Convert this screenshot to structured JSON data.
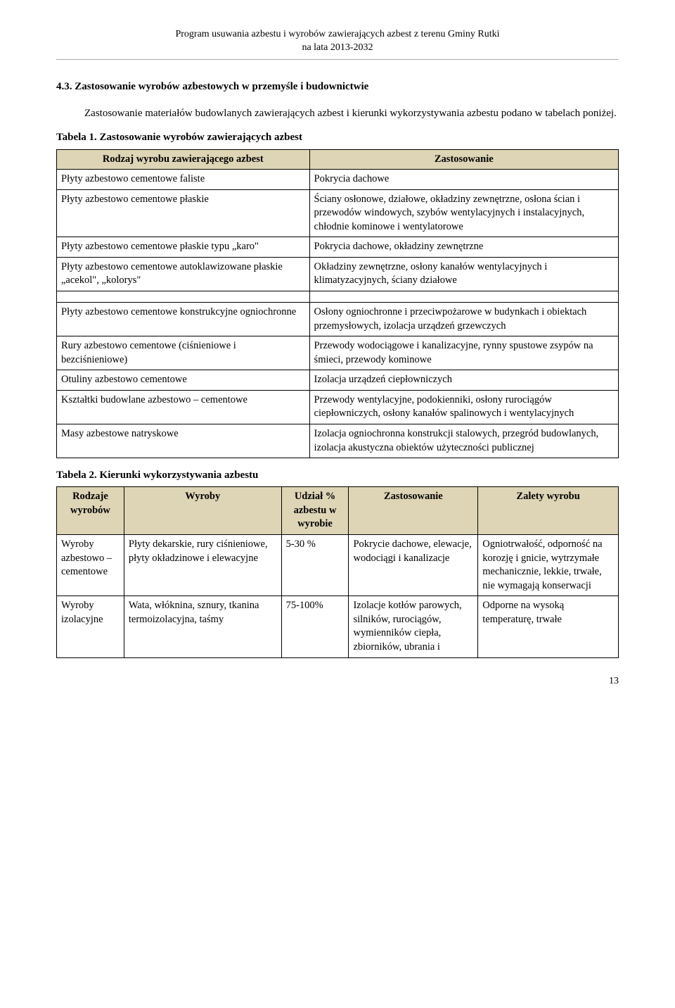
{
  "header": {
    "line1": "Program usuwania azbestu i wyrobów zawierających azbest z terenu Gminy Rutki",
    "line2": "na lata 2013-2032"
  },
  "section": {
    "heading": "4.3. Zastosowanie wyrobów azbestowych w przemyśle i budownictwie",
    "intro": "Zastosowanie materiałów budowlanych zawierających azbest i kierunki wykorzystywania azbestu podano w tabelach poniżej."
  },
  "table1": {
    "caption": "Tabela 1. Zastosowanie wyrobów zawierających azbest",
    "head": {
      "c1": "Rodzaj wyrobu zawierającego azbest",
      "c2": "Zastosowanie"
    },
    "rows_top": [
      {
        "c1": "Płyty azbestowo cementowe faliste",
        "c2": "Pokrycia dachowe"
      },
      {
        "c1": "Płyty azbestowo cementowe płaskie",
        "c2": "Ściany osłonowe, działowe, okładziny zewnętrzne, osłona ścian i przewodów windowych, szybów wentylacyjnych i instalacyjnych, chłodnie kominowe i wentylatorowe"
      },
      {
        "c1": "Płyty azbestowo cementowe płaskie typu „karo\"",
        "c2": "Pokrycia dachowe, okładziny zewnętrzne"
      },
      {
        "c1": "Płyty azbestowo cementowe autoklawizowane płaskie „acekol\", „kolorys\"",
        "c2": "Okładziny zewnętrzne, osłony kanałów wentylacyjnych i klimatyzacyjnych, ściany działowe"
      }
    ],
    "rows_bottom": [
      {
        "c1": "Płyty azbestowo cementowe konstrukcyjne ogniochronne",
        "c2": "Osłony ogniochronne i przeciwpożarowe w budynkach i obiektach przemysłowych, izolacja urządzeń grzewczych"
      },
      {
        "c1": "Rury azbestowo cementowe (ciśnieniowe i bezciśnieniowe)",
        "c2": "Przewody wodociągowe i kanalizacyjne, rynny spustowe zsypów na śmieci, przewody kominowe"
      },
      {
        "c1": "Otuliny azbestowo cementowe",
        "c2": "Izolacja urządzeń ciepłowniczych"
      },
      {
        "c1": "Kształtki budowlane azbestowo – cementowe",
        "c2": "Przewody wentylacyjne, podokienniki, osłony rurociągów ciepłowniczych, osłony kanałów spalinowych i wentylacyjnych"
      },
      {
        "c1": "Masy azbestowe natryskowe",
        "c2": "Izolacja ogniochronna konstrukcji stalowych, przegród budowlanych, izolacja akustyczna obiektów użyteczności publicznej"
      }
    ]
  },
  "table2": {
    "caption": "Tabela 2. Kierunki wykorzystywania azbestu",
    "head": {
      "c1": "Rodzaje wyrobów",
      "c2": "Wyroby",
      "c3": "Udział % azbestu w wyrobie",
      "c4": "Zastosowanie",
      "c5": "Zalety wyrobu"
    },
    "rows": [
      {
        "c1": "Wyroby azbestowo – cementowe",
        "c2": "Płyty dekarskie, rury ciśnieniowe, płyty okładzinowe i elewacyjne",
        "c3": "5-30 %",
        "c4": "Pokrycie dachowe, elewacje, wodociągi i kanalizacje",
        "c5": "Ogniotrwałość, odporność na korozję i gnicie, wytrzymałe mechanicznie, lekkie, trwałe, nie wymagają konserwacji"
      },
      {
        "c1": "Wyroby izolacyjne",
        "c2": "Wata, włóknina, sznury, tkanina termoizolacyjna, taśmy",
        "c3": "75-100%",
        "c4": "Izolacje kotłów parowych, silników, rurociągów, wymienników ciepła, zbiorników, ubrania i",
        "c5": "Odporne na wysoką temperaturę, trwałe"
      }
    ]
  },
  "page_number": "13"
}
